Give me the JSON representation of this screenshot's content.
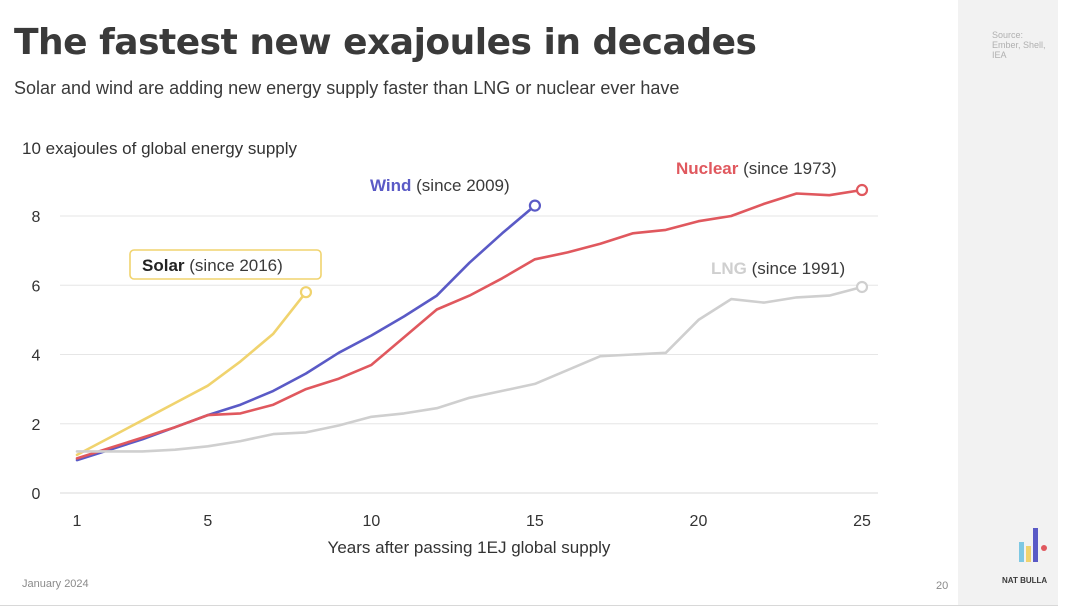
{
  "slide": {
    "title": "The fastest new exajoules in decades",
    "subtitle": "Solar and wind are adding new energy supply faster than LNG or nuclear ever have",
    "source": "Source: Ember, Shell, IEA",
    "date": "January 2024",
    "page": "20",
    "brand": "NAT BULLA"
  },
  "colors": {
    "solar": "#f0d36e",
    "wind": "#5a5ac6",
    "nuclear": "#e0585e",
    "lng": "#cfcfcf",
    "grid": "#e6e6e6",
    "text": "#3a3a3a"
  },
  "chart_data": {
    "type": "line",
    "title": "The fastest new exajoules in decades",
    "ylabel": "10 exajoules of global energy supply",
    "xlabel": "Years after passing 1EJ global supply",
    "xlim": [
      1,
      25
    ],
    "ylim": [
      0,
      10
    ],
    "xticks": [
      1,
      5,
      10,
      15,
      20,
      25
    ],
    "yticks": [
      0,
      2,
      4,
      6,
      8
    ],
    "grid": "horizontal",
    "series": [
      {
        "key": "solar",
        "name": "Solar",
        "since": "(since 2016)",
        "x": [
          1,
          2,
          3,
          4,
          5,
          6,
          7,
          8
        ],
        "y": [
          1.1,
          1.6,
          2.1,
          2.6,
          3.1,
          3.8,
          4.6,
          5.8
        ]
      },
      {
        "key": "wind",
        "name": "Wind",
        "since": "(since 2009)",
        "x": [
          1,
          2,
          3,
          4,
          5,
          6,
          7,
          8,
          9,
          10,
          11,
          12,
          13,
          14,
          15
        ],
        "y": [
          0.95,
          1.25,
          1.55,
          1.9,
          2.25,
          2.55,
          2.95,
          3.45,
          4.05,
          4.55,
          5.1,
          5.7,
          6.65,
          7.5,
          8.3
        ]
      },
      {
        "key": "nuclear",
        "name": "Nuclear",
        "since": "(since 1973)",
        "x": [
          1,
          2,
          3,
          4,
          5,
          6,
          7,
          8,
          9,
          10,
          11,
          12,
          13,
          14,
          15,
          16,
          17,
          18,
          19,
          20,
          21,
          22,
          23,
          24,
          25
        ],
        "y": [
          1.0,
          1.3,
          1.6,
          1.9,
          2.25,
          2.3,
          2.55,
          3.0,
          3.3,
          3.7,
          4.5,
          5.3,
          5.7,
          6.2,
          6.75,
          6.95,
          7.2,
          7.5,
          7.6,
          7.85,
          8.0,
          8.35,
          8.65,
          8.6,
          8.75
        ]
      },
      {
        "key": "lng",
        "name": "LNG",
        "since": "(since 1991)",
        "x": [
          1,
          2,
          3,
          4,
          5,
          6,
          7,
          8,
          9,
          10,
          11,
          12,
          13,
          14,
          15,
          16,
          17,
          18,
          19,
          20,
          21,
          22,
          23,
          24,
          25
        ],
        "y": [
          1.2,
          1.2,
          1.2,
          1.25,
          1.35,
          1.5,
          1.7,
          1.75,
          1.95,
          2.2,
          2.3,
          2.45,
          2.75,
          2.95,
          3.15,
          3.55,
          3.95,
          4.0,
          4.05,
          5.0,
          5.6,
          5.5,
          5.65,
          5.7,
          5.95
        ]
      }
    ]
  }
}
